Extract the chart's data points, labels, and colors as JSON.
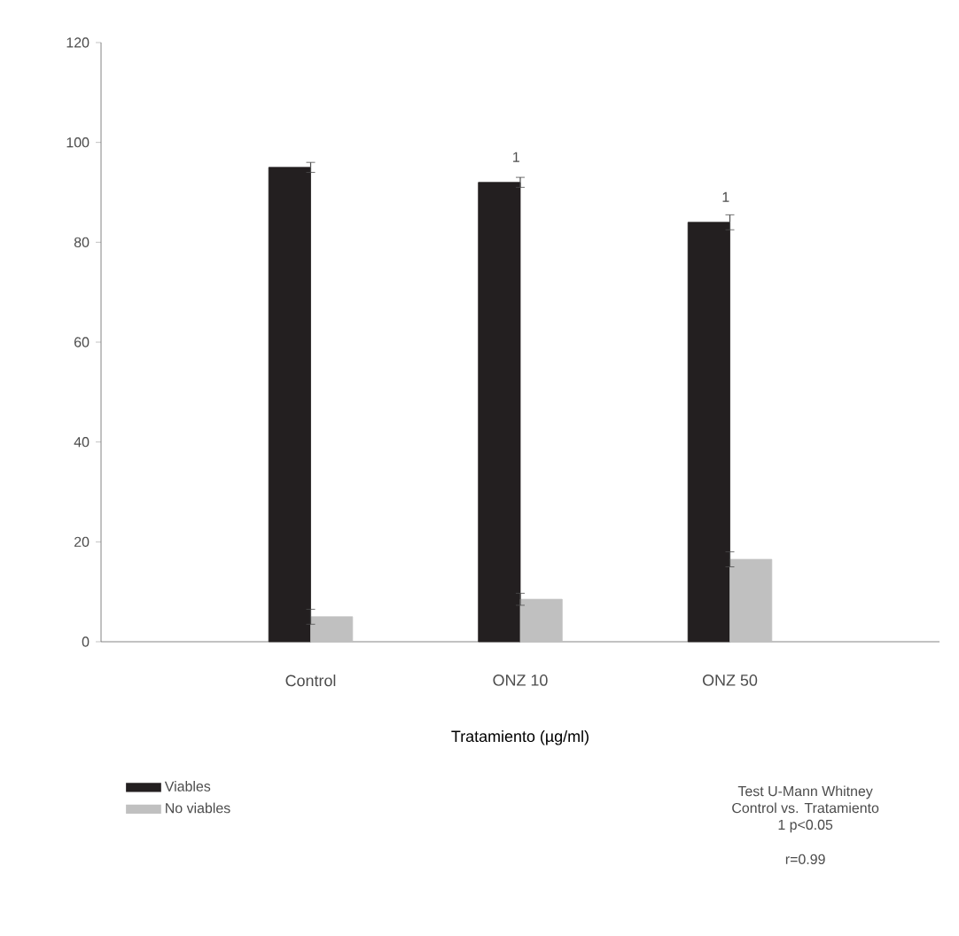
{
  "chart_data": {
    "type": "bar",
    "xlabel": "Tratamiento (µg/ml)",
    "categories": [
      "Control",
      "ONZ 10",
      "ONZ 50"
    ],
    "series": [
      {
        "name": "Viables",
        "color": "#231f20",
        "values": [
          95,
          92,
          84
        ],
        "errors": [
          1,
          1,
          1.5
        ]
      },
      {
        "name": "No viables",
        "color": "#c0c0c0",
        "values": [
          5,
          8.5,
          16.5
        ],
        "errors": [
          1.5,
          1.2,
          1.5
        ]
      }
    ],
    "ylim": [
      0,
      120
    ],
    "yticks": [
      0,
      20,
      40,
      60,
      80,
      100,
      120
    ],
    "grid": false,
    "legend": "bottom left",
    "annotations": [
      {
        "text": "1",
        "x": "ONZ 10",
        "y": 92
      },
      {
        "text": "1",
        "x": "ONZ 50",
        "y": 84
      },
      "Test U-Mann Whitney",
      "Control vs. Tratamiento",
      "1 p<0.05",
      "r=0.99"
    ]
  }
}
